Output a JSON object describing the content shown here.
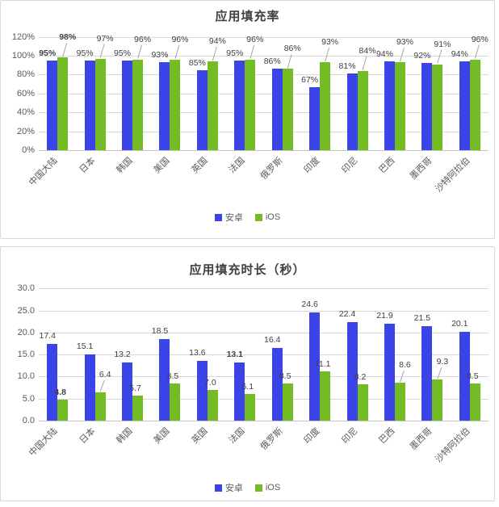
{
  "colors": {
    "android": "#3b44e7",
    "ios": "#74bc23",
    "grid": "#d9d9d9",
    "baseline": "#c6c6c6",
    "axis_text": "#595959",
    "label_text": "#404040",
    "leader_line": "#a6a6a6",
    "panel_border": "#d9d9d9"
  },
  "legend": {
    "android_label": "安卓",
    "ios_label": "iOS"
  },
  "chart_data": [
    {
      "type": "bar",
      "title": "应用填充率",
      "categories": [
        "中国大陆",
        "日本",
        "韩国",
        "美国",
        "英国",
        "法国",
        "俄罗斯",
        "印度",
        "印尼",
        "巴西",
        "墨西哥",
        "沙特阿拉伯"
      ],
      "series": [
        {
          "name": "安卓",
          "values": [
            95,
            95,
            95,
            93,
            85,
            95,
            86,
            67,
            81,
            94,
            92,
            94
          ]
        },
        {
          "name": "iOS",
          "values": [
            98,
            97,
            96,
            96,
            94,
            96,
            86,
            93,
            84,
            93,
            91,
            96
          ]
        }
      ],
      "value_format": "percent",
      "ylim": [
        0,
        120
      ],
      "ytick_step": 20,
      "ytick_labels": [
        "0%",
        "20%",
        "40%",
        "60%",
        "80%",
        "100%",
        "120%"
      ],
      "grid": true,
      "legend_position": "bottom",
      "label_bold": {
        "android": [
          0
        ],
        "ios": [
          0
        ]
      },
      "ios_label_leader": [
        true,
        true,
        true,
        true,
        true,
        true,
        true,
        true,
        true,
        true,
        true,
        true
      ]
    },
    {
      "type": "bar",
      "title": "应用填充时长（秒）",
      "categories": [
        "中国大陆",
        "日本",
        "韩国",
        "美国",
        "英国",
        "法国",
        "俄罗斯",
        "印度",
        "印尼",
        "巴西",
        "墨西哥",
        "沙特阿拉伯"
      ],
      "series": [
        {
          "name": "安卓",
          "values": [
            17.4,
            15.1,
            13.2,
            18.5,
            13.6,
            13.1,
            16.4,
            24.6,
            22.4,
            21.9,
            21.5,
            20.1
          ]
        },
        {
          "name": "iOS",
          "values": [
            4.8,
            6.4,
            5.7,
            8.5,
            7.0,
            6.1,
            8.5,
            11.1,
            8.2,
            8.6,
            9.3,
            8.5
          ]
        }
      ],
      "value_format": "one_decimal",
      "ylim": [
        0,
        30
      ],
      "ytick_step": 5,
      "ytick_labels": [
        "0.0",
        "5.0",
        "10.0",
        "15.0",
        "20.0",
        "25.0",
        "30.0"
      ],
      "grid": true,
      "legend_position": "bottom",
      "label_bold": {
        "android": [
          5
        ],
        "ios": [
          0
        ]
      },
      "ios_label_leader": [
        false,
        true,
        false,
        false,
        false,
        false,
        false,
        false,
        false,
        true,
        true,
        false
      ]
    }
  ]
}
